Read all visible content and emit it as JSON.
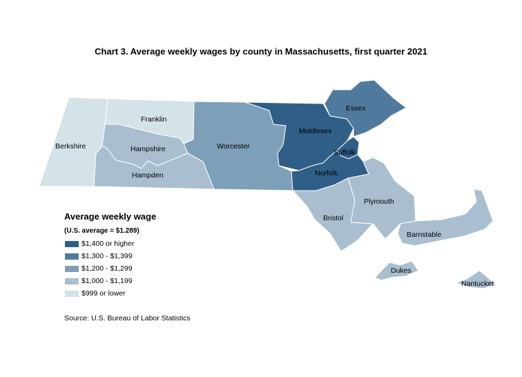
{
  "title": "Chart 3. Average weekly wages by county in Massachusetts, first quarter 2021",
  "legend": {
    "title": "Average weekly wage",
    "subtitle": "(U.S. average = $1.289)",
    "items": [
      {
        "label": "$1,400 or higher",
        "color": "#2f5f86"
      },
      {
        "label": "$1,300 - $1,399",
        "color": "#4f7a9e"
      },
      {
        "label": "$1,200 - $1,299",
        "color": "#7e9fb8"
      },
      {
        "label": "$1,000 - $1,199",
        "color": "#a9bfcf"
      },
      {
        "label": "$999 or lower",
        "color": "#d3e3e8"
      }
    ]
  },
  "counties": {
    "berkshire": {
      "name": "Berkshire",
      "class": "$999 or lower"
    },
    "franklin": {
      "name": "Franklin",
      "class": "$999 or lower"
    },
    "hampshire": {
      "name": "Hampshire",
      "class": "$1,000 - $1,199"
    },
    "hampden": {
      "name": "Hampden",
      "class": "$1,000 - $1,199"
    },
    "worcester": {
      "name": "Worcester",
      "class": "$1,200 - $1,299"
    },
    "middlesex": {
      "name": "Middlesex",
      "class": "$1,400 or higher"
    },
    "essex": {
      "name": "Essex",
      "class": "$1,300 - $1,399"
    },
    "suffolk": {
      "name": "Suffolk",
      "class": "$1,400 or higher"
    },
    "norfolk": {
      "name": "Norfolk",
      "class": "$1,400 or higher"
    },
    "bristol": {
      "name": "Bristol",
      "class": "$1,000 - $1,199"
    },
    "plymouth": {
      "name": "Plymouth",
      "class": "$1,000 - $1,199"
    },
    "barnstable": {
      "name": "Barnstable",
      "class": "$1,000 - $1,199"
    },
    "dukes": {
      "name": "Dukes",
      "class": "$1,000 - $1,199"
    },
    "nantucket": {
      "name": "Nantucket",
      "class": "$1,000 - $1,199"
    }
  },
  "source": "Source: U.S. Bureau of Labor Statistics"
}
